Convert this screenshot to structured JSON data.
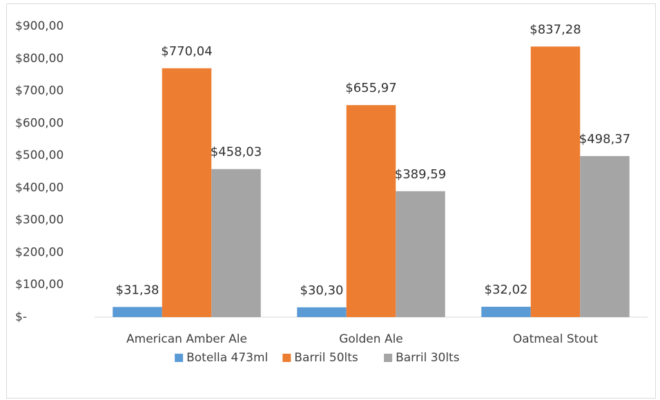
{
  "chart_data": {
    "type": "bar",
    "categories": [
      "American Amber Ale",
      "Golden Ale",
      "Oatmeal Stout"
    ],
    "series": [
      {
        "name": "Botella 473ml",
        "color": "#5b9bd5",
        "values": [
          31.38,
          30.3,
          32.02
        ],
        "value_labels": [
          "$31,38",
          "$30,30",
          "$32,02"
        ]
      },
      {
        "name": "Barril 50lts",
        "color": "#ed7d31",
        "values": [
          770.04,
          655.97,
          837.28
        ],
        "value_labels": [
          "$770,04",
          "$655,97",
          "$837,28"
        ]
      },
      {
        "name": "Barril 30lts",
        "color": "#a5a5a5",
        "values": [
          458.03,
          389.59,
          498.37
        ],
        "value_labels": [
          "$458,03",
          "$389,59",
          "$498,37"
        ]
      }
    ],
    "ylim": [
      0,
      900
    ],
    "yticks": [
      {
        "value": 0,
        "label": "$-"
      },
      {
        "value": 100,
        "label": "$100,00"
      },
      {
        "value": 200,
        "label": "$200,00"
      },
      {
        "value": 300,
        "label": "$300,00"
      },
      {
        "value": 400,
        "label": "$400,00"
      },
      {
        "value": 500,
        "label": "$500,00"
      },
      {
        "value": 600,
        "label": "$600,00"
      },
      {
        "value": 700,
        "label": "$700,00"
      },
      {
        "value": 800,
        "label": "$800,00"
      },
      {
        "value": 900,
        "label": "$900,00"
      }
    ],
    "legend": "bottom"
  }
}
